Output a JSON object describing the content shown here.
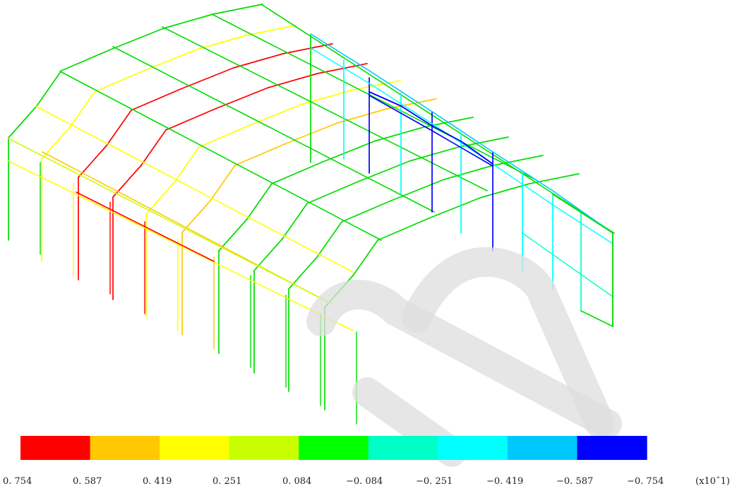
{
  "legend": {
    "colors": [
      "#ff0000",
      "#ffc800",
      "#ffff00",
      "#c8ff00",
      "#00ff00",
      "#00ffc8",
      "#00ffff",
      "#00c8ff",
      "#0000ff"
    ],
    "tick_labels": [
      "0. 754",
      "0. 587",
      "0. 419",
      "0. 251",
      "0. 084",
      "−0. 084",
      "−0. 251",
      "−0. 419",
      "−0. 587",
      "−0. 754"
    ],
    "unit_label": "(x10ˆ1)"
  },
  "model": {
    "base_color": "#00dd00"
  }
}
